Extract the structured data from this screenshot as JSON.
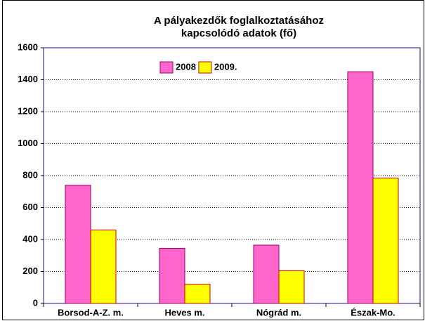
{
  "chart_data": {
    "type": "bar",
    "title": [
      "A pályakezdők foglalkoztatásához",
      "kapcsolódó adatok (fő)"
    ],
    "categories": [
      "Borsod-A-Z. m.",
      "Heves m.",
      "Nógrád m.",
      "Észak-Mo."
    ],
    "series": [
      {
        "name": "2008",
        "color": "#ff66cc",
        "values": [
          740,
          345,
          365,
          1450
        ]
      },
      {
        "name": "2009.",
        "color": "#ffff00",
        "values": [
          460,
          120,
          205,
          785
        ]
      }
    ],
    "ylim": [
      0,
      1600
    ],
    "yticks": [
      0,
      200,
      400,
      600,
      800,
      1000,
      1200,
      1400,
      1600
    ],
    "grid": true,
    "legend": "top"
  }
}
